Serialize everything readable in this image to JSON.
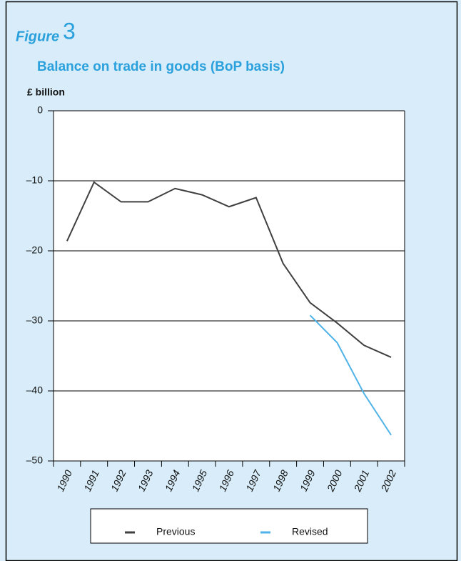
{
  "chart_data": {
    "type": "line",
    "figure_label": "Figure",
    "figure_number": "3",
    "title": "Balance on trade in goods (BoP basis)",
    "y_label": "£ billion",
    "categories": [
      "1990",
      "1991",
      "1992",
      "1993",
      "1994",
      "1995",
      "1996",
      "1997",
      "1998",
      "1999",
      "2000",
      "2001",
      "2002"
    ],
    "series": [
      {
        "name": "Previous",
        "color": "#404040",
        "values": [
          -18.6,
          -10.2,
          -13.0,
          -13.0,
          -11.1,
          -12.0,
          -13.7,
          -12.4,
          -21.8,
          -27.4,
          -30.3,
          -33.5,
          -35.2
        ]
      },
      {
        "name": "Revised",
        "color": "#4fb3e8",
        "values": [
          null,
          null,
          null,
          null,
          null,
          null,
          null,
          null,
          null,
          -29.2,
          -33.1,
          -40.4,
          -46.3
        ]
      }
    ],
    "ylim": [
      -50,
      0
    ],
    "yticks": [
      0,
      {
        "value": -10,
        "label": "–10"
      },
      {
        "value": -20,
        "label": "–20"
      },
      {
        "value": -30,
        "label": "–30"
      },
      {
        "value": -40,
        "label": "–40"
      },
      {
        "value": -50,
        "label": "–50"
      }
    ],
    "grid": true
  }
}
